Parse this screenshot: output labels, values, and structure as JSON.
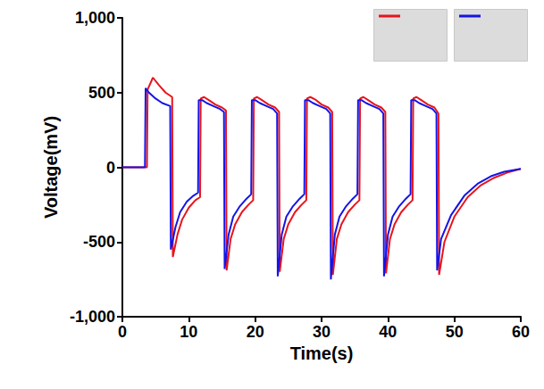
{
  "chart_data": {
    "type": "line",
    "x_label": "Time(s)",
    "y_label": "Voltage(mV)",
    "xlim": [
      0,
      60
    ],
    "xticks": [
      0,
      10,
      20,
      30,
      40,
      50,
      60
    ],
    "ylim": [
      -1000,
      1000
    ],
    "yticks": [
      -1000,
      -500,
      0,
      500,
      1000
    ],
    "grid": false,
    "series": [
      {
        "color": "#e8141c",
        "x": [
          0,
          3,
          3.7,
          3.8,
          4.6,
          5.5,
          6.5,
          7.5,
          7.6,
          8.3,
          9,
          10,
          11,
          11.7,
          11.8,
          12.3,
          13,
          14,
          15,
          15.6,
          15.7,
          16.3,
          17,
          18,
          19,
          19.7,
          19.8,
          20.3,
          21,
          22,
          23,
          23.6,
          23.7,
          24.3,
          25,
          26,
          27,
          27.7,
          27.8,
          28.3,
          29,
          30,
          31,
          31.6,
          31.7,
          32.3,
          33,
          34,
          35,
          35.7,
          35.8,
          36.3,
          37,
          38,
          39,
          39.6,
          39.7,
          40.3,
          41,
          42,
          43,
          43.7,
          43.8,
          44.3,
          45,
          46,
          47,
          47.6,
          47.7,
          48.5,
          50,
          52,
          54,
          56,
          58,
          60
        ],
        "values": [
          0,
          0,
          0,
          520,
          600,
          550,
          500,
          470,
          -600,
          -450,
          -350,
          -270,
          -220,
          -200,
          460,
          470,
          450,
          420,
          400,
          380,
          -690,
          -480,
          -380,
          -300,
          -250,
          -220,
          460,
          470,
          450,
          420,
          400,
          370,
          -700,
          -480,
          -380,
          -300,
          -250,
          -220,
          460,
          470,
          455,
          420,
          400,
          370,
          -720,
          -480,
          -380,
          -300,
          -250,
          -220,
          460,
          470,
          450,
          420,
          400,
          370,
          -710,
          -480,
          -380,
          -300,
          -250,
          -220,
          460,
          470,
          450,
          420,
          400,
          360,
          -720,
          -500,
          -330,
          -200,
          -120,
          -70,
          -35,
          -10
        ]
      },
      {
        "color": "#1414e6",
        "x": [
          0,
          3,
          3.4,
          3.5,
          4,
          5,
          6,
          7.2,
          7.3,
          8,
          8.7,
          9.7,
          10.7,
          11.4,
          11.5,
          12,
          12.7,
          13.7,
          14.7,
          15.3,
          15.4,
          16,
          16.7,
          17.7,
          18.7,
          19.4,
          19.5,
          20,
          20.7,
          21.7,
          22.7,
          23.3,
          23.4,
          24,
          24.7,
          25.7,
          26.7,
          27.4,
          27.5,
          28,
          28.7,
          29.7,
          30.7,
          31.3,
          31.4,
          32,
          32.7,
          33.7,
          34.7,
          35.4,
          35.5,
          36,
          36.7,
          37.7,
          38.7,
          39.3,
          39.4,
          40,
          40.7,
          41.7,
          42.7,
          43.4,
          43.5,
          44,
          44.7,
          45.7,
          46.7,
          47.3,
          47.4,
          48,
          49.5,
          51.5,
          53.5,
          55.5,
          57.5,
          60
        ],
        "values": [
          0,
          0,
          0,
          530,
          500,
          460,
          430,
          410,
          -550,
          -400,
          -300,
          -230,
          -190,
          -170,
          450,
          450,
          430,
          410,
          390,
          370,
          -680,
          -450,
          -330,
          -260,
          -210,
          -180,
          450,
          450,
          430,
          410,
          390,
          360,
          -730,
          -450,
          -330,
          -260,
          -210,
          -180,
          450,
          450,
          430,
          410,
          390,
          360,
          -750,
          -450,
          -330,
          -260,
          -210,
          -180,
          450,
          450,
          430,
          410,
          390,
          360,
          -730,
          -450,
          -330,
          -260,
          -210,
          -180,
          450,
          450,
          430,
          410,
          390,
          360,
          -690,
          -480,
          -320,
          -190,
          -110,
          -60,
          -30,
          -10
        ]
      }
    ]
  }
}
